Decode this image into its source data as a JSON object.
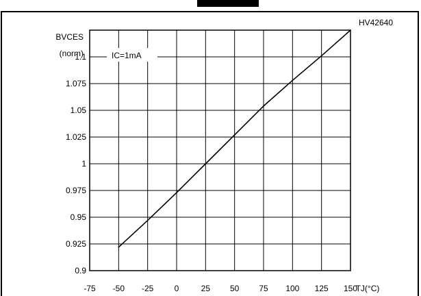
{
  "chart_data": {
    "type": "line",
    "title": "",
    "figure_id": "HV42640",
    "annotation": "IC=1mA",
    "ylabel_line1": "BVCES",
    "ylabel_line2": "(norm)",
    "xlabel": "TJ(°C)",
    "xlim": [
      -75,
      150
    ],
    "ylim": [
      0.9,
      1.125
    ],
    "xticks": [
      "-75",
      "-50",
      "-25",
      "0",
      "25",
      "50",
      "75",
      "100",
      "125",
      "150"
    ],
    "yticks": [
      "0.9",
      "0.925",
      "0.95",
      "0.975",
      "1",
      "1.025",
      "1.05",
      "1.075",
      "1.1"
    ],
    "grid": true,
    "series": [
      {
        "x": [
          -50,
          -25,
          0,
          25,
          50,
          75,
          100,
          125,
          150
        ],
        "y": [
          0.922,
          0.947,
          0.973,
          1.0,
          1.027,
          1.054,
          1.078,
          1.101,
          1.125
        ]
      }
    ]
  }
}
